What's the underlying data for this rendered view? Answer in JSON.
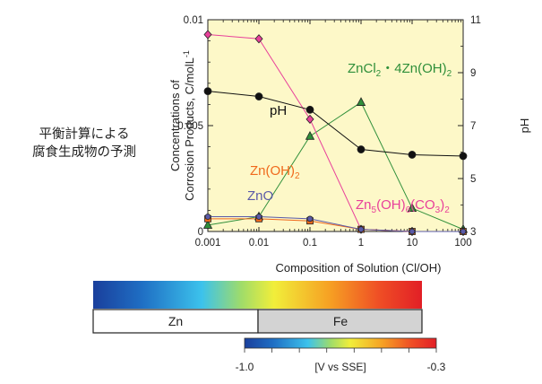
{
  "side_note": {
    "line1": "平衡計算による",
    "line2": "腐食生成物の予測"
  },
  "chart_data": {
    "type": "line",
    "x_scale": "log",
    "x": [
      0.001,
      0.01,
      0.1,
      1,
      10,
      100
    ],
    "x_tick_labels": [
      "0.001",
      "0.01",
      "0.1",
      "1",
      "10",
      "100"
    ],
    "xlim": [
      0.001,
      100
    ],
    "ylim_left": [
      0,
      0.01
    ],
    "y_left_ticks": [
      0,
      0.005,
      0.01
    ],
    "y_left_tick_labels": [
      "0",
      "0.005",
      "0.01"
    ],
    "ylim_right": [
      3,
      11
    ],
    "y_right_ticks": [
      3,
      5,
      7,
      9,
      11
    ],
    "xlabel": "Composition of Solution (Cl/OH)",
    "ylabel_line1": "Concentrations of",
    "ylabel_line2_main": "Corrosion Products, C/molL",
    "ylabel_line2_sup": "-1",
    "ylabel_right": "pH",
    "background": "#fdf8c8",
    "series": [
      {
        "name": "ZnCl₂・4Zn(OH)₂",
        "axis": "left",
        "color": "#2f8f3a",
        "marker": "triangle",
        "values": [
          0.0003,
          0.0007,
          0.0045,
          0.0061,
          0.0011,
          0.0001
        ]
      },
      {
        "name": "Zn₅(OH)₆(CO₃)₂",
        "axis": "left",
        "color": "#e8409a",
        "marker": "diamond",
        "values": [
          0.0093,
          0.0091,
          0.0053,
          0.0001,
          0.0,
          0.0
        ]
      },
      {
        "name": "Zn(OH)₂",
        "axis": "left",
        "color": "#f06a1c",
        "marker": "square",
        "values": [
          0.0006,
          0.0006,
          0.0005,
          0.0001,
          0.0,
          0.0
        ]
      },
      {
        "name": "ZnO",
        "axis": "left",
        "color": "#5a5aa8",
        "marker": "circle",
        "values": [
          0.0007,
          0.0007,
          0.0006,
          0.0001,
          0.0,
          0.0
        ]
      },
      {
        "name": "pH",
        "axis": "right",
        "color": "#111111",
        "marker": "circle",
        "values": [
          8.3,
          8.1,
          7.6,
          6.1,
          5.9,
          5.85
        ]
      }
    ],
    "annotations": {
      "znCl": {
        "main1": "ZnCl",
        "sub1": "2",
        "main2": "・4Zn(OH)",
        "sub2": "2"
      },
      "ph": "pH",
      "znoh": {
        "main": "Zn(OH)",
        "sub": "2"
      },
      "zno": "ZnO",
      "zn5": {
        "m1": "Zn",
        "s1": "5",
        "m2": "(OH)",
        "s2": "6",
        "m3": "(CO",
        "s3": "3",
        "m4": ")",
        "s4": "2"
      }
    }
  },
  "phase_bar": {
    "left_label": "Zn",
    "right_label": "Fe"
  },
  "colorbar": {
    "min_label": "-1.0",
    "unit_label": "[V vs SSE]",
    "max_label": "-0.3"
  }
}
